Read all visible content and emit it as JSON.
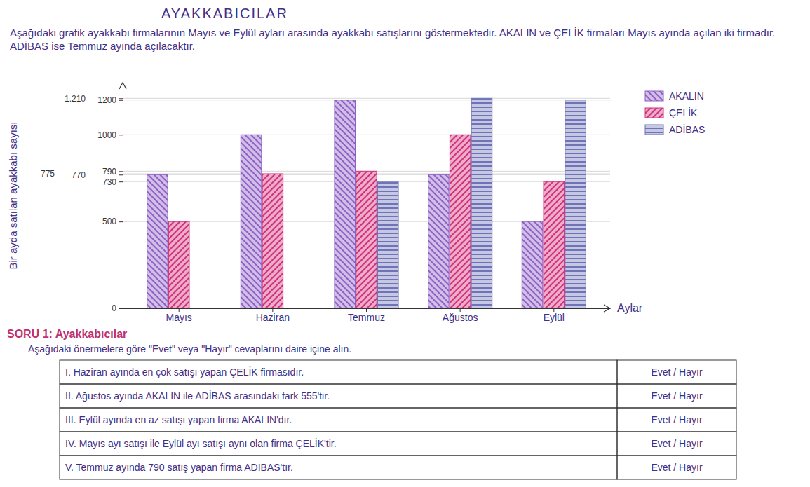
{
  "chart_data": {
    "type": "bar",
    "title": "AYAKKABICILAR",
    "x_label": "Aylar",
    "y_label": "Bir ayda satılan ayakkabı sayısı",
    "categories": [
      "Mayıs",
      "Haziran",
      "Temmuz",
      "Ağustos",
      "Eylül"
    ],
    "series": [
      {
        "name": "AKALIN",
        "color": "#8e5fc4",
        "values": [
          770,
          1000,
          1200,
          770,
          500
        ]
      },
      {
        "name": "ÇELİK",
        "color": "#d0307a",
        "values": [
          500,
          775,
          790,
          1000,
          730
        ]
      },
      {
        "name": "ADİBAS",
        "color": "#6f73b8",
        "values": [
          null,
          null,
          730,
          1210,
          1200
        ]
      }
    ],
    "ylim": [
      0,
      1300
    ],
    "yticks": [
      0,
      500,
      730,
      770,
      775,
      790,
      1000,
      1200,
      {
        "value": 1210,
        "label": "1.210"
      }
    ],
    "grid": true,
    "legend": "right"
  },
  "intro": "Aşağıdaki grafik ayakkabı firmalarının Mayıs ve Eylül ayları arasında ayakkabı satışlarını göstermektedir. AKALIN ve ÇELİK firmaları Mayıs ayında açılan iki firmadır. ADİBAS ise Temmuz ayında açılacaktır.",
  "question": {
    "title": "SORU 1: Ayakkabıcılar",
    "instruction": "Aşağıdaki önermelere göre \"Evet\" veya \"Hayır\" cevaplarını daire içine alın.",
    "rows": [
      [
        "I. Haziran ayında en çok satışı yapan ÇELİK firmasıdır.",
        "Evet / Hayır"
      ],
      [
        "II. Ağustos ayında AKALIN ile ADİBAS arasındaki fark 555'tir.",
        "Evet / Hayır"
      ],
      [
        "III. Eylül ayında en az satışı yapan firma AKALIN'dır.",
        "Evet / Hayır"
      ],
      [
        "IV. Mayıs ayı satışı ile Eylül ayı satışı aynı olan firma ÇELİK'tir.",
        "Evet / Hayır"
      ],
      [
        "V. Temmuz ayında 790 satış yapan firma ADİBAS'tır.",
        "Evet / Hayır"
      ]
    ]
  }
}
